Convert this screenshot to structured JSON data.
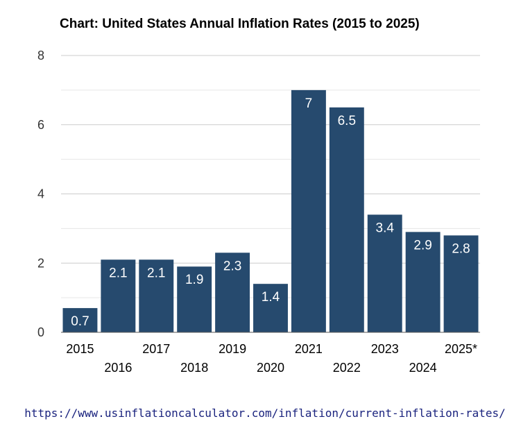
{
  "chart_data": {
    "type": "bar",
    "title": "Chart: United States Annual Inflation Rates (2015 to 2025)",
    "xlabel": "",
    "ylabel": "",
    "categories": [
      "2015",
      "2016",
      "2017",
      "2018",
      "2019",
      "2020",
      "2021",
      "2022",
      "2023",
      "2024",
      "2025*"
    ],
    "values": [
      0.7,
      2.1,
      2.1,
      1.9,
      2.3,
      1.4,
      7,
      6.5,
      3.4,
      2.9,
      2.8
    ],
    "data_labels": [
      "0.7",
      "2.1",
      "2.1",
      "1.9",
      "2.3",
      "1.4",
      "7",
      "6.5",
      "3.4",
      "2.9",
      "2.8"
    ],
    "ylim": [
      0,
      8
    ],
    "y_ticks": [
      0,
      2,
      4,
      6,
      8
    ],
    "grid": true,
    "legend": "none",
    "bar_color": "#264a6e",
    "grid_color": "#cccccc"
  },
  "source_text": "https://www.usinflationcalculator.com/inflation/current-inflation-rates/"
}
